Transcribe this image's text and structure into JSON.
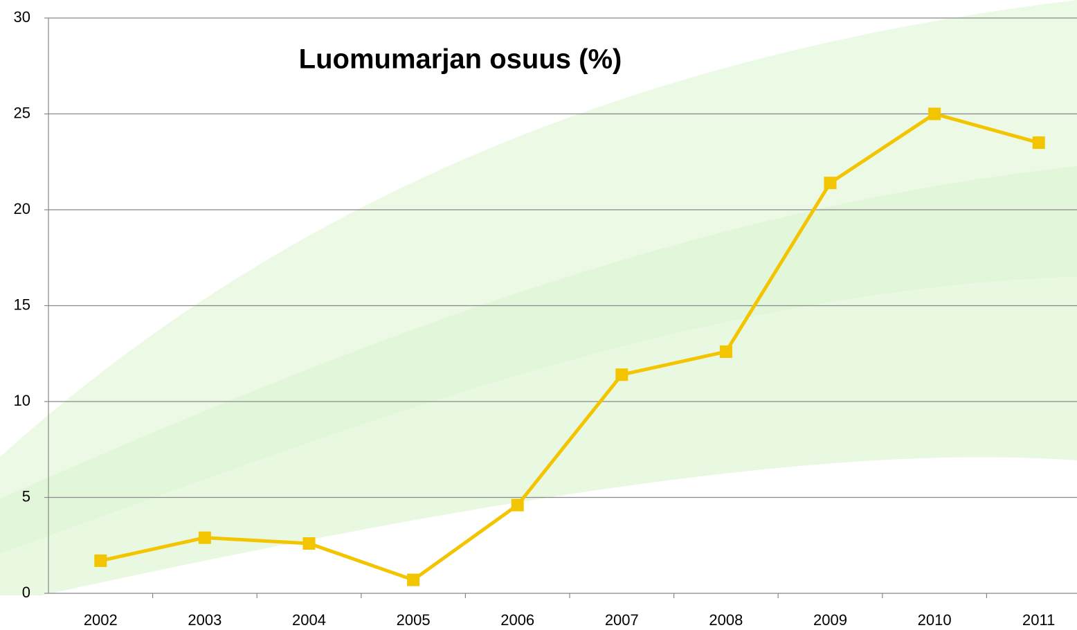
{
  "chart_data": {
    "type": "line",
    "title": "Luomumarjan osuus (%)",
    "categories": [
      "2002",
      "2003",
      "2004",
      "2005",
      "2006",
      "2007",
      "2008",
      "2009",
      "2010",
      "2011"
    ],
    "series": [
      {
        "name": "Luomumarjan osuus",
        "color": "#f2c500",
        "values": [
          1.7,
          2.9,
          2.6,
          0.7,
          4.6,
          11.4,
          12.6,
          21.4,
          25.0,
          23.5
        ]
      }
    ],
    "ylim": [
      0,
      30
    ],
    "yticks": [
      0,
      5,
      10,
      15,
      20,
      25,
      30
    ],
    "grid": true
  }
}
